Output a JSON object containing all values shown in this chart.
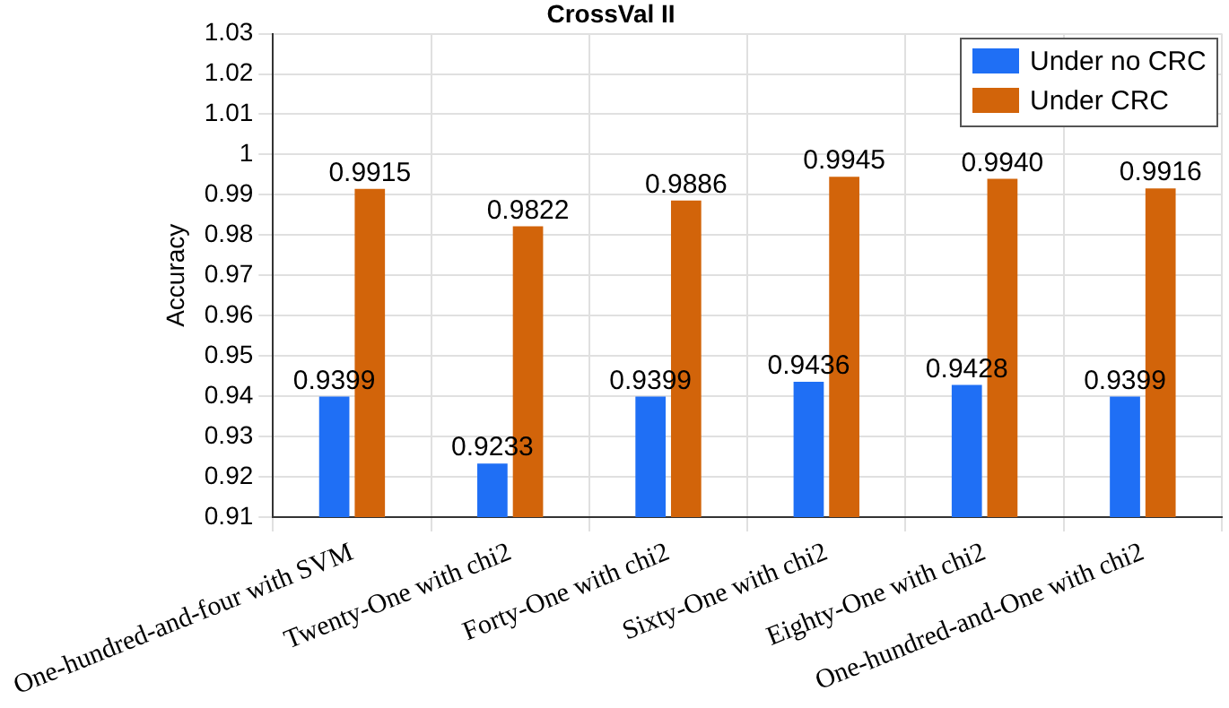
{
  "chart_data": {
    "type": "bar",
    "title": "CrossVal II",
    "ylabel": "Accuracy",
    "categories": [
      "One-hundred-and-four with SVM",
      "Twenty-One with chi2",
      "Forty-One with chi2",
      "Sixty-One with chi2",
      "Eighty-One with chi2",
      "One-hundred-and-One with chi2"
    ],
    "series": [
      {
        "name": "Under no CRC",
        "color": "#1f6ff5",
        "values": [
          0.9399,
          0.9233,
          0.9399,
          0.9436,
          0.9428,
          0.9399
        ],
        "value_labels": [
          "0.9399",
          "0.9233",
          "0.9399",
          "0.9436",
          "0.9428",
          "0.9399"
        ]
      },
      {
        "name": "Under CRC",
        "color": "#d2640a",
        "values": [
          0.9915,
          0.9822,
          0.9886,
          0.9945,
          0.994,
          0.9916
        ],
        "value_labels": [
          "0.9915",
          "0.9822",
          "0.9886",
          "0.9945",
          "0.9940",
          "0.9916"
        ]
      }
    ],
    "ylim": [
      0.91,
      1.03
    ],
    "yticks": [
      0.91,
      0.92,
      0.93,
      0.94,
      0.95,
      0.96,
      0.97,
      0.98,
      0.99,
      1,
      1.01,
      1.02,
      1.03
    ],
    "grid": true,
    "legend": "top right"
  }
}
